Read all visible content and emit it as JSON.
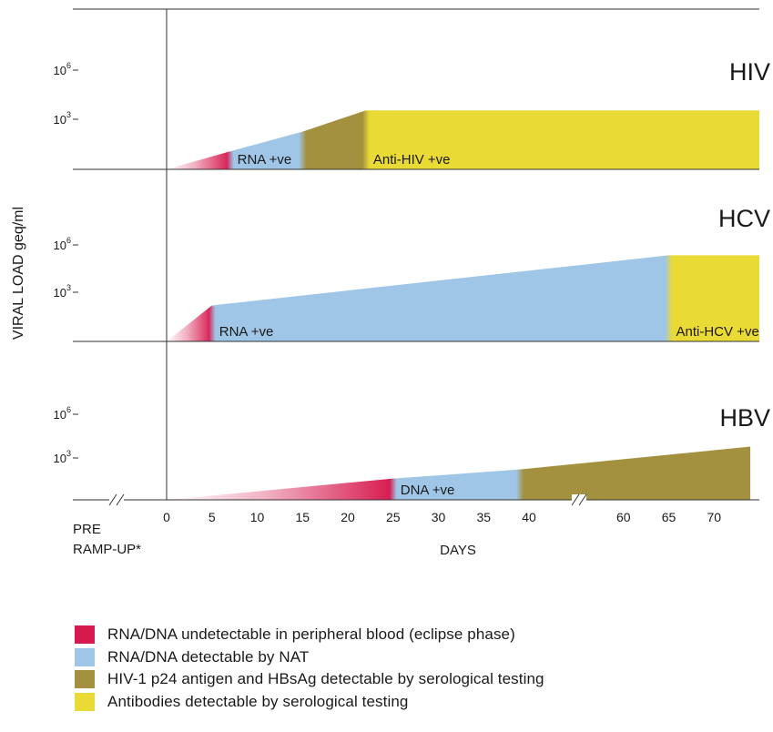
{
  "chart_data": {
    "type": "area",
    "ylabel": "VIRAL LOAD geq/ml",
    "xlabel": "DAYS",
    "pre_label_line1": "PRE",
    "pre_label_line2": "RAMP-UP*",
    "x_ticks": [
      "0",
      "5",
      "10",
      "15",
      "20",
      "25",
      "30",
      "35",
      "40",
      "60",
      "65",
      "70"
    ],
    "y_ticks": [
      {
        "base": "10",
        "exp": "6"
      },
      {
        "base": "10",
        "exp": "3"
      }
    ],
    "colors": {
      "eclipse": "#d61a4f",
      "nat": "#9fc6e6",
      "antigen": "#a3913f",
      "antibody": "#e9da35"
    },
    "panels": [
      {
        "virus": "HIV",
        "segments": [
          {
            "phase": "eclipse",
            "x_start": 0,
            "x_end": 7,
            "log_load_start": 0,
            "log_load_end": 1.1
          },
          {
            "phase": "nat",
            "x_start": 7,
            "x_end": 15,
            "log_load_start": 1.1,
            "log_load_end": 2.3,
            "label": "RNA +ve"
          },
          {
            "phase": "antigen",
            "x_start": 15,
            "x_end": 22,
            "log_load_start": 2.3,
            "log_load_end": 3.6
          },
          {
            "phase": "antibody",
            "x_start": 22,
            "x_end": 75,
            "log_load_start": 3.6,
            "log_load_end": 3.6,
            "label": "Anti-HIV +ve"
          }
        ]
      },
      {
        "virus": "HCV",
        "segments": [
          {
            "phase": "eclipse",
            "x_start": 0,
            "x_end": 5,
            "log_load_start": 0,
            "log_load_end": 2.3
          },
          {
            "phase": "nat",
            "x_start": 5,
            "x_end": 65,
            "log_load_start": 2.3,
            "log_load_end": 5.5,
            "label": "RNA +ve"
          },
          {
            "phase": "antibody",
            "x_start": 65,
            "x_end": 75,
            "log_load_start": 5.5,
            "log_load_end": 5.5,
            "label": "Anti-HCV +ve"
          }
        ]
      },
      {
        "virus": "HBV",
        "segments": [
          {
            "phase": "eclipse",
            "x_start": 0,
            "x_end": 25,
            "log_load_start": 0,
            "log_load_end": 1.4
          },
          {
            "phase": "nat",
            "x_start": 25,
            "x_end": 39,
            "log_load_start": 1.4,
            "log_load_end": 2.0,
            "label": "DNA +ve"
          },
          {
            "phase": "antigen",
            "x_start": 39,
            "x_end": 74,
            "log_load_start": 2.0,
            "log_load_end": 3.5
          }
        ]
      }
    ],
    "legend": [
      {
        "phase": "eclipse",
        "label": "RNA/DNA undetectable in peripheral blood (eclipse phase)"
      },
      {
        "phase": "nat",
        "label": "RNA/DNA detectable by NAT"
      },
      {
        "phase": "antigen",
        "label": "HIV-1 p24 antigen and HBsAg detectable by serological testing"
      },
      {
        "phase": "antibody",
        "label": "Antibodies detectable by serological testing"
      }
    ]
  }
}
